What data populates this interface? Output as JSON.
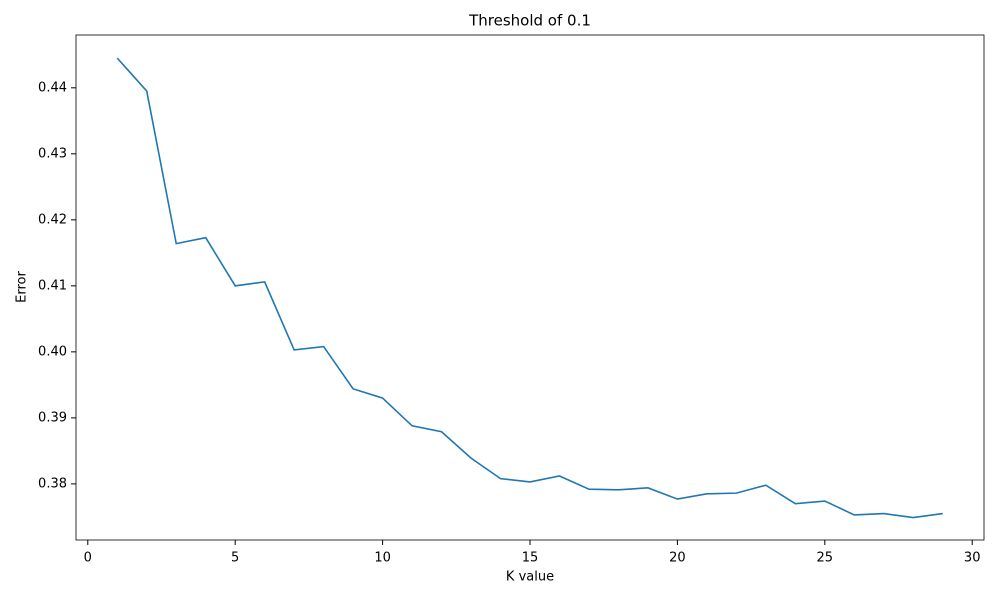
{
  "chart_data": {
    "type": "line",
    "title": "Threshold of 0.1",
    "x_label": "K value",
    "y_label": "Error",
    "x": [
      1,
      2,
      3,
      4,
      5,
      6,
      7,
      8,
      9,
      10,
      11,
      12,
      13,
      14,
      15,
      16,
      17,
      18,
      19,
      20,
      21,
      22,
      23,
      24,
      25,
      26,
      27,
      28,
      29
    ],
    "series": [
      {
        "color": "#1f77b4",
        "values": [
          0.4445,
          0.4395,
          0.4164,
          0.4173,
          0.41,
          0.4106,
          0.4003,
          0.4008,
          0.3944,
          0.393,
          0.3888,
          0.3879,
          0.3839,
          0.3808,
          0.3803,
          0.3812,
          0.3792,
          0.3791,
          0.3794,
          0.3777,
          0.3785,
          0.3786,
          0.3798,
          0.377,
          0.3774,
          0.3753,
          0.3755,
          0.3749,
          0.3755
        ]
      }
    ],
    "xlim": [
      -0.4,
      30.4
    ],
    "xticks": [
      0,
      5,
      10,
      15,
      20,
      25,
      30
    ],
    "ylim": [
      0.3715,
      0.448
    ],
    "yticks": [
      0.38,
      0.39,
      {
        "value": 0.4,
        "label": "0.40"
      },
      0.41,
      0.42,
      0.43,
      0.44
    ]
  }
}
